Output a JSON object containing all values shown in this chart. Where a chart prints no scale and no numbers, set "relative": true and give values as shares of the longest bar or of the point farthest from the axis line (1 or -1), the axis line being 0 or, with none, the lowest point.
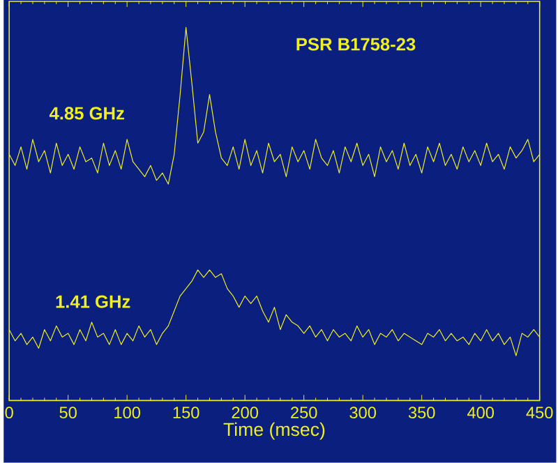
{
  "chart_data": {
    "type": "line",
    "title": "PSR B1758-23",
    "xlabel": "Time (msec)",
    "relative": true,
    "xlim": [
      0,
      450
    ],
    "xticks": [
      0,
      50,
      100,
      150,
      200,
      250,
      300,
      350,
      400,
      450
    ],
    "x": [
      0,
      5,
      10,
      15,
      20,
      25,
      30,
      35,
      40,
      45,
      50,
      55,
      60,
      65,
      70,
      75,
      80,
      85,
      90,
      95,
      100,
      105,
      110,
      115,
      120,
      125,
      130,
      135,
      140,
      145,
      150,
      155,
      160,
      165,
      170,
      175,
      180,
      185,
      190,
      195,
      200,
      205,
      210,
      215,
      220,
      225,
      230,
      235,
      240,
      245,
      250,
      255,
      260,
      265,
      270,
      275,
      280,
      285,
      290,
      295,
      300,
      305,
      310,
      315,
      320,
      325,
      330,
      335,
      340,
      345,
      350,
      355,
      360,
      365,
      370,
      375,
      380,
      385,
      390,
      395,
      400,
      405,
      410,
      415,
      420,
      425,
      430,
      435,
      440,
      445,
      450
    ],
    "series": [
      {
        "name": "4.85 GHz",
        "color": "#f0f020",
        "values": [
          0.66,
          0.63,
          0.68,
          0.62,
          0.7,
          0.64,
          0.67,
          0.61,
          0.69,
          0.63,
          0.66,
          0.62,
          0.68,
          0.64,
          0.65,
          0.61,
          0.69,
          0.63,
          0.67,
          0.62,
          0.7,
          0.64,
          0.62,
          0.6,
          0.63,
          0.59,
          0.61,
          0.58,
          0.66,
          0.82,
          1.0,
          0.85,
          0.69,
          0.72,
          0.82,
          0.72,
          0.65,
          0.63,
          0.68,
          0.62,
          0.7,
          0.63,
          0.67,
          0.61,
          0.69,
          0.64,
          0.66,
          0.6,
          0.68,
          0.64,
          0.67,
          0.62,
          0.7,
          0.65,
          0.63,
          0.67,
          0.61,
          0.68,
          0.64,
          0.69,
          0.63,
          0.66,
          0.6,
          0.68,
          0.64,
          0.67,
          0.62,
          0.69,
          0.63,
          0.66,
          0.61,
          0.68,
          0.64,
          0.69,
          0.63,
          0.66,
          0.62,
          0.68,
          0.64,
          0.67,
          0.63,
          0.69,
          0.64,
          0.66,
          0.62,
          0.68,
          0.65,
          0.67,
          0.7,
          0.64,
          0.66
        ]
      },
      {
        "name": "1.41 GHz",
        "color": "#f0f020",
        "values": [
          0.19,
          0.16,
          0.18,
          0.15,
          0.17,
          0.14,
          0.19,
          0.16,
          0.2,
          0.17,
          0.18,
          0.15,
          0.19,
          0.16,
          0.21,
          0.17,
          0.18,
          0.15,
          0.19,
          0.15,
          0.18,
          0.16,
          0.2,
          0.17,
          0.19,
          0.15,
          0.18,
          0.2,
          0.24,
          0.28,
          0.3,
          0.32,
          0.35,
          0.33,
          0.35,
          0.33,
          0.34,
          0.3,
          0.28,
          0.25,
          0.28,
          0.26,
          0.28,
          0.24,
          0.21,
          0.25,
          0.19,
          0.23,
          0.21,
          0.2,
          0.18,
          0.2,
          0.17,
          0.19,
          0.16,
          0.19,
          0.17,
          0.18,
          0.16,
          0.2,
          0.17,
          0.19,
          0.15,
          0.18,
          0.17,
          0.19,
          0.16,
          0.18,
          0.17,
          0.16,
          0.15,
          0.18,
          0.17,
          0.19,
          0.16,
          0.18,
          0.16,
          0.17,
          0.15,
          0.18,
          0.16,
          0.19,
          0.16,
          0.18,
          0.15,
          0.17,
          0.12,
          0.18,
          0.17,
          0.19,
          0.17
        ]
      }
    ]
  }
}
